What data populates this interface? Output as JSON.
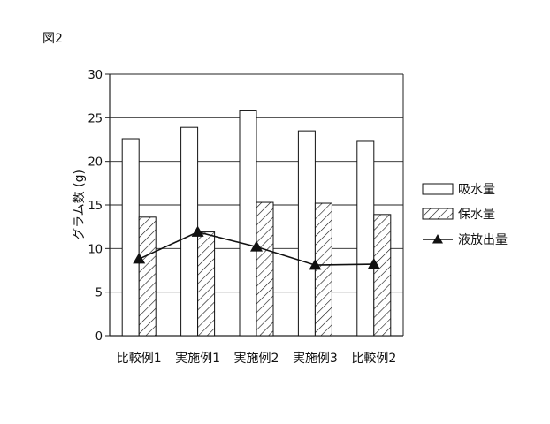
{
  "figure_label": "図2",
  "chart_data": {
    "type": "bar",
    "categories": [
      "比較例1",
      "実施例1",
      "実施例2",
      "実施例3",
      "比較例2"
    ],
    "series": [
      {
        "name": "吸水量",
        "kind": "bar",
        "pattern": "solid-white",
        "values": [
          22.6,
          23.9,
          25.8,
          23.5,
          22.3
        ]
      },
      {
        "name": "保水量",
        "kind": "bar",
        "pattern": "diagonal-hatch",
        "values": [
          13.6,
          11.9,
          15.3,
          15.2,
          13.9
        ]
      },
      {
        "name": "液放出量",
        "kind": "line",
        "marker": "triangle",
        "values": [
          8.8,
          11.9,
          10.2,
          8.1,
          8.2
        ]
      }
    ],
    "ylabel": "グラム数 (g)",
    "xlabel": "",
    "ylim": [
      0,
      30
    ],
    "yticks": [
      0,
      5,
      10,
      15,
      20,
      25,
      30
    ],
    "grid": true,
    "legend_position": "right"
  }
}
